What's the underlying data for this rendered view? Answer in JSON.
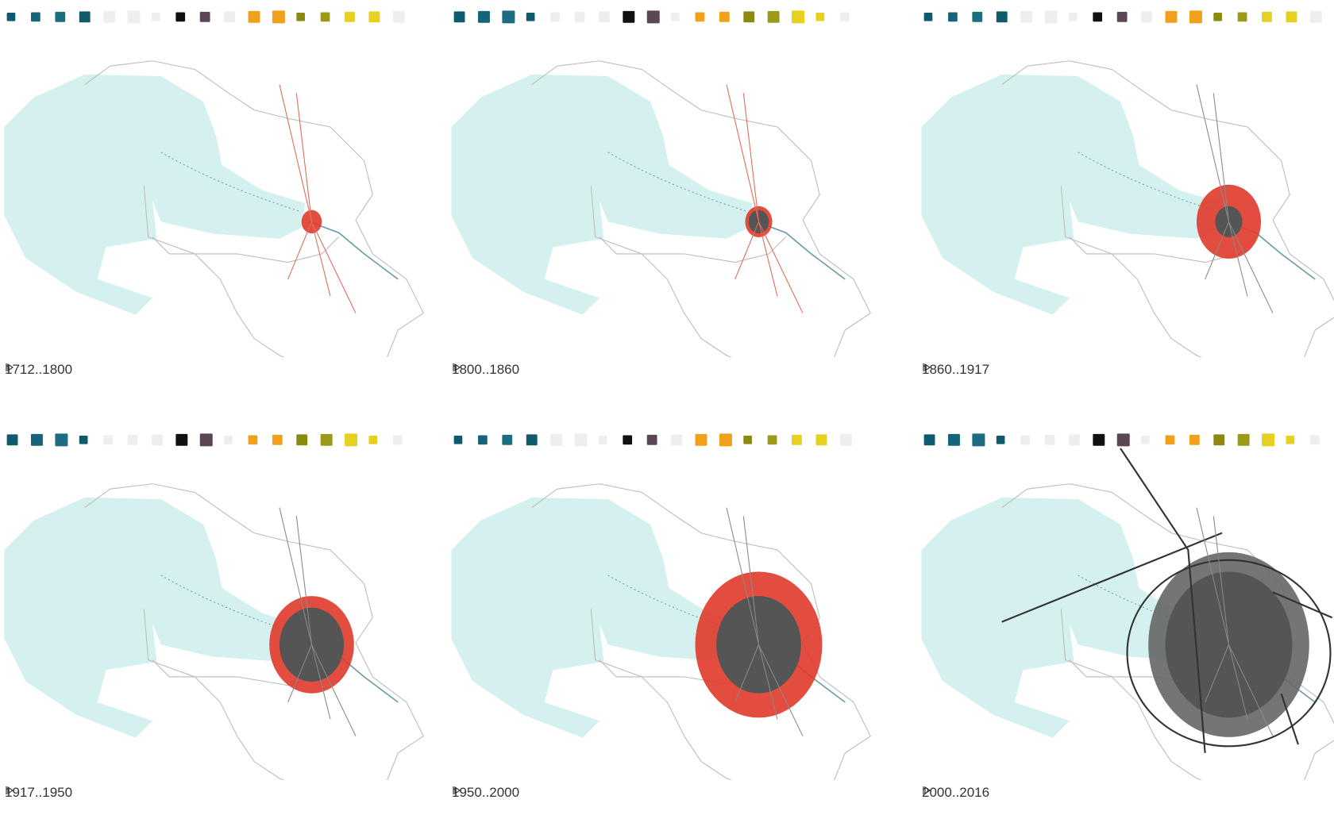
{
  "panels": [
    {
      "period": "1712..1800"
    },
    {
      "period": "1800..1860"
    },
    {
      "period": "1860..1917"
    },
    {
      "period": "1917..1950"
    },
    {
      "period": "1950..2000"
    },
    {
      "period": "2000..2016"
    }
  ]
}
